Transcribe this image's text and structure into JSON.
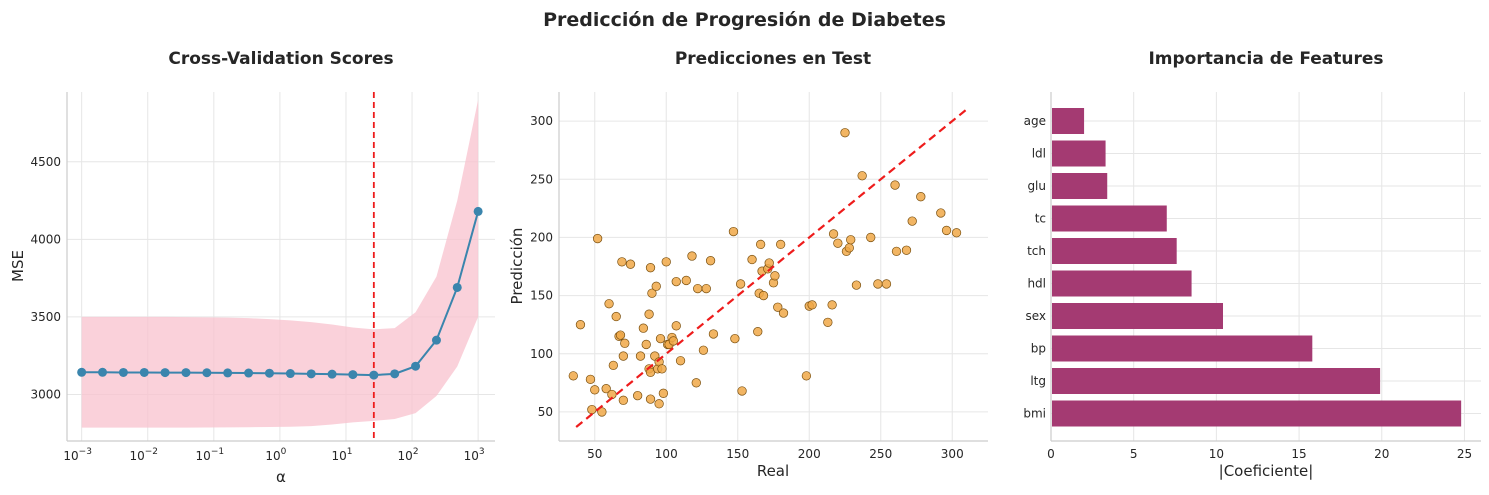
{
  "suptitle": "Predicción de Progresión de Diabetes",
  "colors": {
    "cv_line": "#3a85ad",
    "cv_band": "#f8c1cd",
    "ref_line": "#ee1c1c",
    "scatter_fill": "#f0a848",
    "scatter_edge": "#7a5010",
    "bar": "#a43a72"
  },
  "chart_data": [
    {
      "type": "line",
      "title": "Cross-Validation Scores",
      "xlabel": "α",
      "ylabel": "MSE",
      "xscale": "log",
      "xlim": [
        0.0006,
        1800
      ],
      "ylim": [
        2700,
        4950
      ],
      "xticks": [
        {
          "label": "10",
          "exp": "−3",
          "v": 0.001
        },
        {
          "label": "10",
          "exp": "−2",
          "v": 0.01
        },
        {
          "label": "10",
          "exp": "−1",
          "v": 0.1
        },
        {
          "label": "10",
          "exp": "0",
          "v": 1
        },
        {
          "label": "10",
          "exp": "1",
          "v": 10
        },
        {
          "label": "10",
          "exp": "2",
          "v": 100
        },
        {
          "label": "10",
          "exp": "3",
          "v": 1000
        }
      ],
      "yticks": [
        3000,
        3500,
        4000,
        4500
      ],
      "grid": true,
      "x": [
        0.001,
        0.00207,
        0.00428,
        0.00886,
        0.0183,
        0.0379,
        0.0785,
        0.162,
        0.336,
        0.695,
        1.44,
        2.98,
        6.16,
        12.7,
        26.4,
        54.6,
        113,
        234,
        483,
        1000
      ],
      "y": [
        3143,
        3143,
        3142,
        3142,
        3141,
        3141,
        3140,
        3139,
        3138,
        3137,
        3135,
        3133,
        3131,
        3128,
        3125,
        3133,
        3182,
        3350,
        3690,
        4180
      ],
      "band_upper": [
        3500,
        3500,
        3500,
        3500,
        3500,
        3499,
        3497,
        3495,
        3492,
        3486,
        3478,
        3466,
        3451,
        3432,
        3420,
        3428,
        3530,
        3760,
        4250,
        4900
      ],
      "band_lower": [
        2786,
        2786,
        2786,
        2786,
        2786,
        2786,
        2787,
        2788,
        2789,
        2790,
        2792,
        2796,
        2806,
        2820,
        2830,
        2842,
        2880,
        2990,
        3180,
        3500
      ],
      "vline": 26.4
    },
    {
      "type": "scatter",
      "title": "Predicciones en Test",
      "xlabel": "Real",
      "ylabel": "Predicción",
      "xlim": [
        25,
        325
      ],
      "ylim": [
        25,
        325
      ],
      "xticks": [
        50,
        100,
        150,
        200,
        250,
        300
      ],
      "yticks": [
        50,
        100,
        150,
        200,
        250,
        300
      ],
      "grid": true,
      "reference_line": [
        [
          37,
          37
        ],
        [
          310,
          310
        ]
      ],
      "points": [
        [
          35,
          81
        ],
        [
          40,
          125
        ],
        [
          47,
          78
        ],
        [
          48,
          52
        ],
        [
          50,
          69
        ],
        [
          52,
          199
        ],
        [
          55,
          50
        ],
        [
          58,
          70
        ],
        [
          60,
          143
        ],
        [
          62,
          65
        ],
        [
          63,
          90
        ],
        [
          65,
          132
        ],
        [
          67,
          115
        ],
        [
          68,
          116
        ],
        [
          69,
          179
        ],
        [
          70,
          60
        ],
        [
          70,
          98
        ],
        [
          71,
          109
        ],
        [
          75,
          177
        ],
        [
          80,
          64
        ],
        [
          82,
          98
        ],
        [
          84,
          122
        ],
        [
          86,
          108
        ],
        [
          88,
          134
        ],
        [
          88,
          87
        ],
        [
          89,
          61
        ],
        [
          89,
          84
        ],
        [
          89,
          174
        ],
        [
          90,
          152
        ],
        [
          92,
          98
        ],
        [
          93,
          158
        ],
        [
          94,
          87
        ],
        [
          95,
          57
        ],
        [
          95,
          93
        ],
        [
          96,
          113
        ],
        [
          97,
          87
        ],
        [
          98,
          66
        ],
        [
          100,
          179
        ],
        [
          101,
          108
        ],
        [
          102,
          108
        ],
        [
          104,
          114
        ],
        [
          105,
          111
        ],
        [
          107,
          124
        ],
        [
          107,
          162
        ],
        [
          110,
          94
        ],
        [
          114,
          163
        ],
        [
          118,
          184
        ],
        [
          121,
          75
        ],
        [
          122,
          156
        ],
        [
          126,
          103
        ],
        [
          128,
          156
        ],
        [
          131,
          180
        ],
        [
          133,
          117
        ],
        [
          147,
          205
        ],
        [
          148,
          113
        ],
        [
          152,
          160
        ],
        [
          153,
          68
        ],
        [
          160,
          181
        ],
        [
          164,
          119
        ],
        [
          165,
          152
        ],
        [
          166,
          194
        ],
        [
          167,
          171
        ],
        [
          168,
          150
        ],
        [
          171,
          173
        ],
        [
          172,
          178
        ],
        [
          175,
          161
        ],
        [
          176,
          167
        ],
        [
          178,
          140
        ],
        [
          180,
          194
        ],
        [
          182,
          135
        ],
        [
          198,
          81
        ],
        [
          200,
          141
        ],
        [
          202,
          142
        ],
        [
          213,
          127
        ],
        [
          216,
          142
        ],
        [
          217,
          203
        ],
        [
          220,
          195
        ],
        [
          225,
          290
        ],
        [
          226,
          188
        ],
        [
          228,
          191
        ],
        [
          229,
          198
        ],
        [
          233,
          159
        ],
        [
          237,
          253
        ],
        [
          243,
          200
        ],
        [
          248,
          160
        ],
        [
          254,
          160
        ],
        [
          260,
          245
        ],
        [
          261,
          188
        ],
        [
          268,
          189
        ],
        [
          272,
          214
        ],
        [
          278,
          235
        ],
        [
          292,
          221
        ],
        [
          296,
          206
        ],
        [
          303,
          204
        ]
      ]
    },
    {
      "type": "bar",
      "orientation": "horizontal",
      "title": "Importancia de Features",
      "xlabel": "|Coeficiente|",
      "ylabel": "",
      "xlim": [
        0,
        26
      ],
      "xticks": [
        0,
        5,
        10,
        15,
        20,
        25
      ],
      "grid": true,
      "categories": [
        "age",
        "ldl",
        "glu",
        "tc",
        "tch",
        "hdl",
        "sex",
        "bp",
        "ltg",
        "bmi"
      ],
      "values": [
        2.0,
        3.3,
        3.4,
        7.0,
        7.6,
        8.5,
        10.4,
        15.8,
        19.9,
        24.8
      ]
    }
  ]
}
